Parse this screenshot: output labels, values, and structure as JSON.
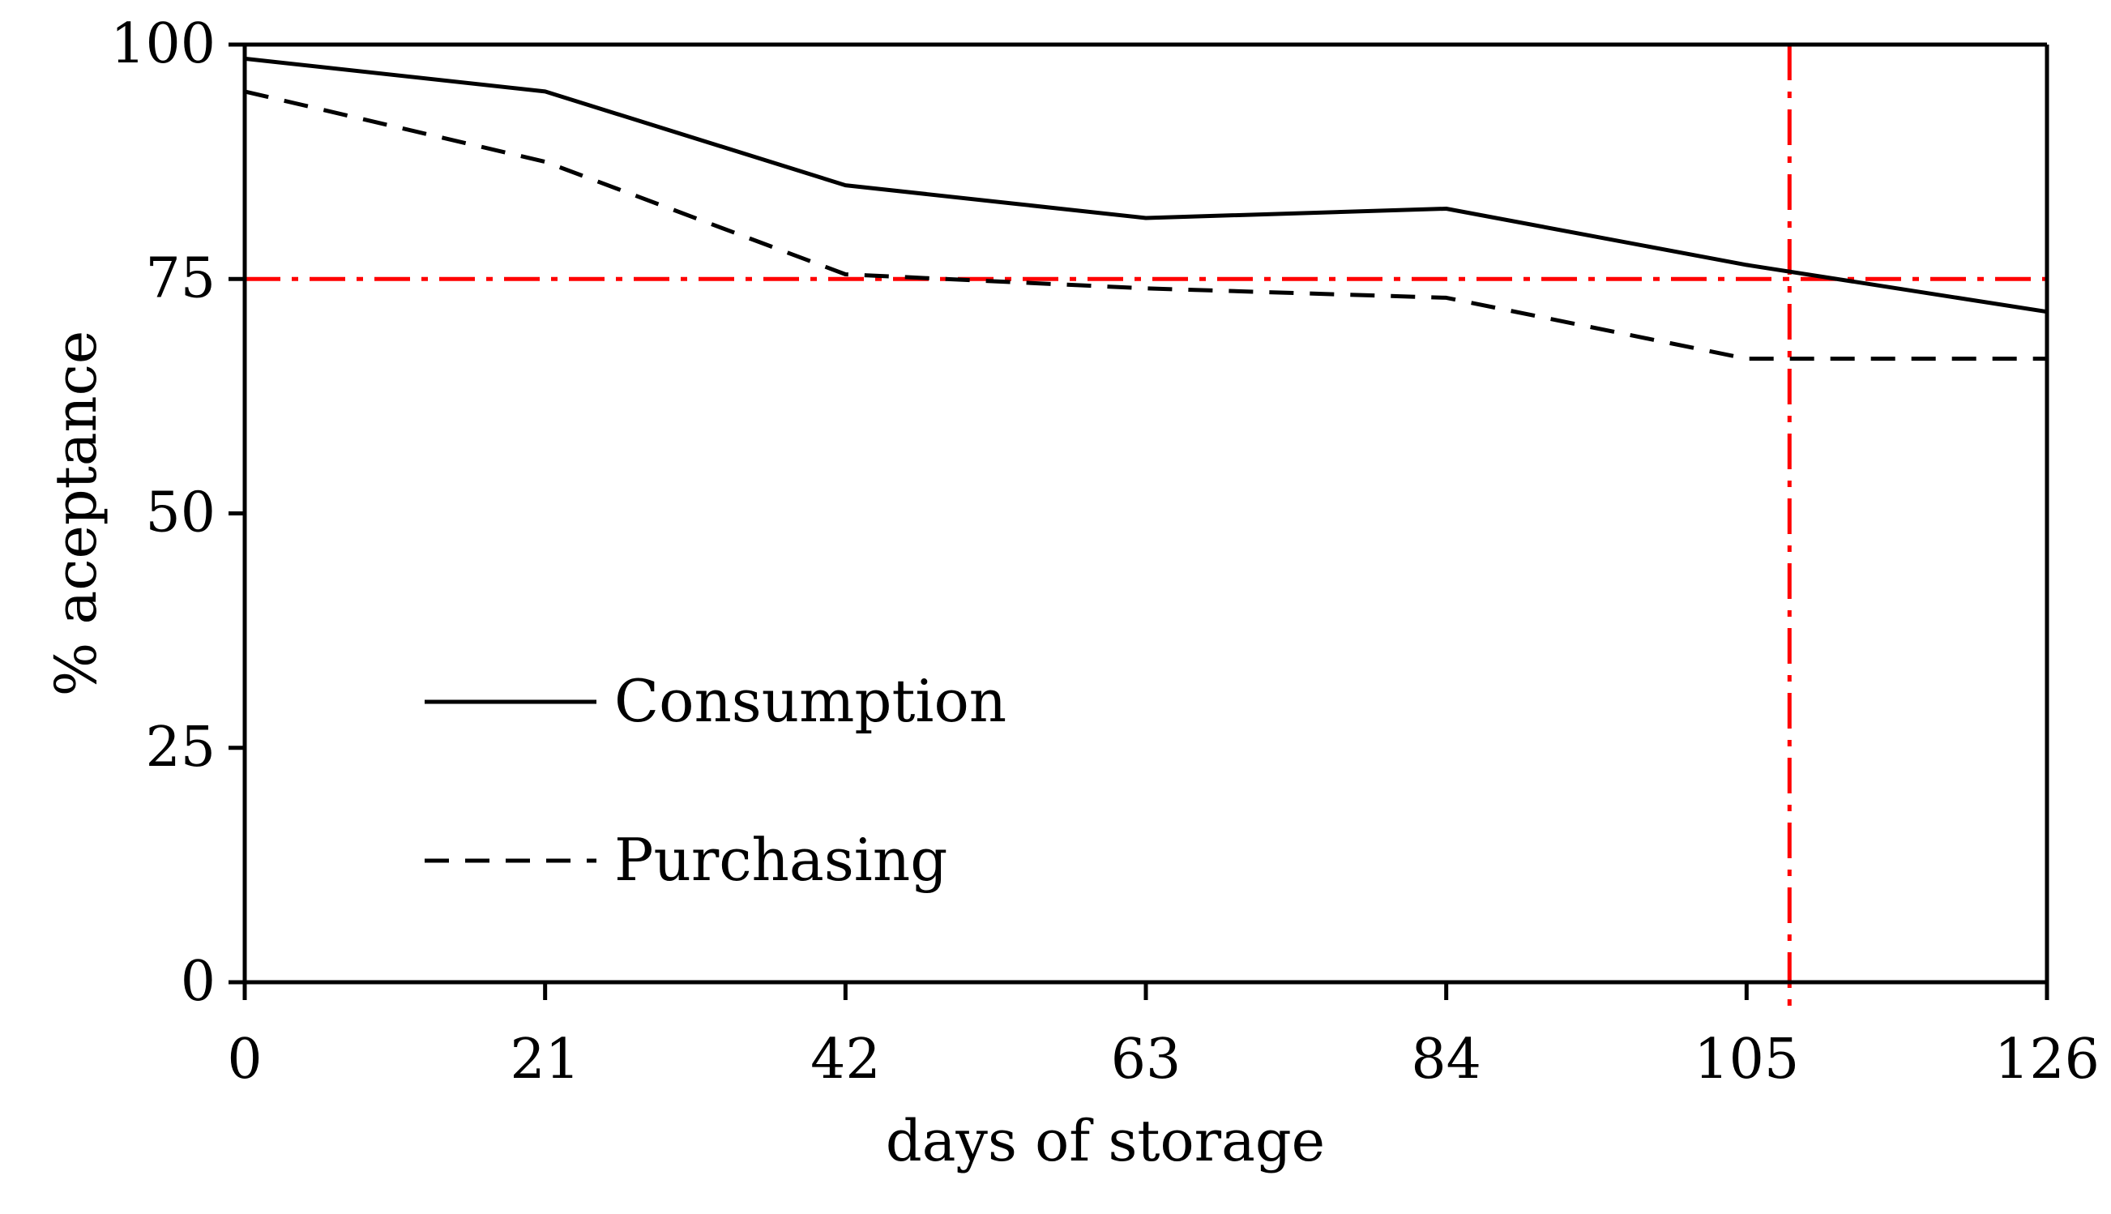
{
  "chart_data": {
    "type": "line",
    "title": "",
    "xlabel": "days  of storage",
    "ylabel": "% aceptance",
    "xlim": [
      0,
      126
    ],
    "ylim": [
      0,
      100
    ],
    "x": [
      0,
      21,
      42,
      63,
      84,
      105,
      126
    ],
    "x_ticks": [
      0,
      21,
      42,
      63,
      84,
      105,
      126
    ],
    "x_tick_labels": [
      "0",
      "21",
      "42",
      "63",
      "84",
      "105",
      "126"
    ],
    "y_ticks": [
      0,
      25,
      50,
      75,
      100
    ],
    "y_tick_labels": [
      "0",
      "25",
      "50",
      "75",
      "100"
    ],
    "grid": false,
    "legend_position": "lower-left",
    "series": [
      {
        "name": "Consumption",
        "style": "solid",
        "color": "#000000",
        "points": [
          [
            0,
            98.5
          ],
          [
            21,
            95
          ],
          [
            42,
            85
          ],
          [
            63,
            81.5
          ],
          [
            84,
            82.5
          ],
          [
            105,
            76.5
          ],
          [
            126,
            71.5
          ]
        ]
      },
      {
        "name": "Purchasing",
        "style": "dashed",
        "color": "#000000",
        "points": [
          [
            0,
            95
          ],
          [
            21,
            87.5
          ],
          [
            42,
            75.5
          ],
          [
            63,
            74
          ],
          [
            84,
            73
          ],
          [
            105,
            66.5
          ],
          [
            126,
            66.5
          ]
        ]
      }
    ],
    "reference_lines": [
      {
        "orientation": "horizontal",
        "value": 75,
        "style": "dash-dot",
        "color": "#ff0000"
      },
      {
        "orientation": "vertical",
        "value": 108,
        "style": "dash-dot",
        "color": "#ff0000"
      }
    ]
  }
}
